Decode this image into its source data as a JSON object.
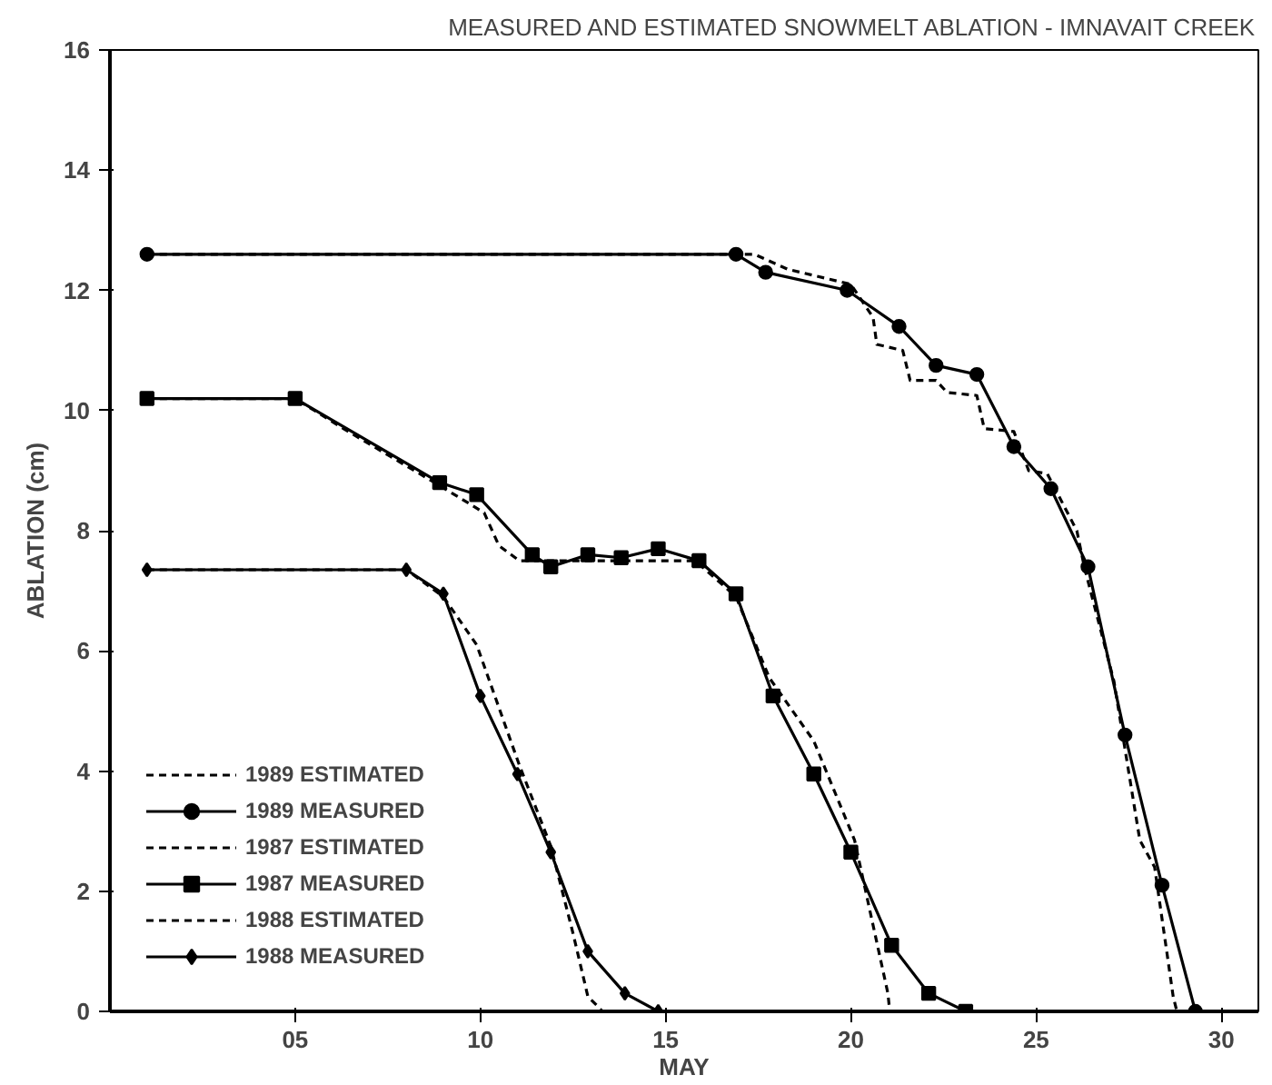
{
  "chart_data": {
    "type": "line",
    "title": "MEASURED AND ESTIMATED SNOWMELT ABLATION - IMNAVAIT CREEK",
    "xlabel": "MAY",
    "ylabel": "ABLATION (cm)",
    "xlim": [
      0,
      31
    ],
    "ylim": [
      0,
      16
    ],
    "xticks": [
      {
        "value": 5,
        "label": "05"
      },
      10,
      15,
      20,
      25,
      30
    ],
    "yticks": [
      0,
      2,
      4,
      6,
      8,
      10,
      12,
      14,
      16
    ],
    "grid": false,
    "legend": "bottom left",
    "series": [
      {
        "name": "1989 ESTIMATED",
        "color": "#000000",
        "line_style": "dashed",
        "marker": "none",
        "x": [
          1,
          17.4,
          18.3,
          20.0,
          20.6,
          20.7,
          21.4,
          21.6,
          22.3,
          22.6,
          23.4,
          23.6,
          24.4,
          24.8,
          25.3,
          26.1,
          26.3,
          27.1,
          27.8,
          28.2,
          28.7,
          28.8
        ],
        "values": [
          12.6,
          12.6,
          12.35,
          12.1,
          11.55,
          11.1,
          11.0,
          10.5,
          10.5,
          10.3,
          10.25,
          9.7,
          9.65,
          9.0,
          8.95,
          8.0,
          7.4,
          5.5,
          2.85,
          2.4,
          0.25,
          0
        ]
      },
      {
        "name": "1989 MEASURED",
        "color": "#000000",
        "line_style": "solid",
        "marker": "circle",
        "x": [
          1,
          16.9,
          17.7,
          19.9,
          21.3,
          22.3,
          23.4,
          24.4,
          25.4,
          26.4,
          27.4,
          28.4,
          29.3
        ],
        "values": [
          12.6,
          12.6,
          12.3,
          12.0,
          11.4,
          10.75,
          10.6,
          9.4,
          8.7,
          7.4,
          4.6,
          2.1,
          0
        ]
      },
      {
        "name": "1987 ESTIMATED",
        "color": "#000000",
        "line_style": "dashed",
        "marker": "none",
        "x": [
          1,
          5,
          6.3,
          8.9,
          10.1,
          10.5,
          11.05,
          14.8,
          15.8,
          16.9,
          17.8,
          19.0,
          20.1,
          21.0,
          21.05
        ],
        "values": [
          10.2,
          10.2,
          9.7,
          8.75,
          8.3,
          7.75,
          7.5,
          7.5,
          7.5,
          6.9,
          5.55,
          4.5,
          2.85,
          0.3,
          0
        ]
      },
      {
        "name": "1987 MEASURED",
        "color": "#000000",
        "line_style": "solid",
        "marker": "square",
        "x": [
          1,
          5,
          8.9,
          9.9,
          11.4,
          11.9,
          12.9,
          13.8,
          14.8,
          15.9,
          16.9,
          17.9,
          19.0,
          20.0,
          21.1,
          22.1,
          23.1
        ],
        "values": [
          10.2,
          10.2,
          8.8,
          8.6,
          7.6,
          7.4,
          7.6,
          7.55,
          7.7,
          7.5,
          6.95,
          5.25,
          3.95,
          2.65,
          1.1,
          0.3,
          0
        ]
      },
      {
        "name": "1988 ESTIMATED",
        "color": "#000000",
        "line_style": "dashed",
        "marker": "none",
        "x": [
          1,
          8,
          9,
          9.9,
          11.05,
          11.9,
          12.5,
          12.9,
          13.3
        ],
        "values": [
          7.35,
          7.35,
          6.9,
          6.1,
          4.1,
          2.75,
          1.3,
          0.25,
          0
        ]
      },
      {
        "name": "1988 MEASURED",
        "color": "#000000",
        "line_style": "solid",
        "marker": "diamond",
        "x": [
          1,
          8.0,
          9.0,
          10.0,
          11.0,
          11.9,
          12.9,
          13.9,
          14.8
        ],
        "values": [
          7.35,
          7.35,
          6.95,
          5.25,
          3.95,
          2.65,
          1.0,
          0.3,
          0
        ]
      }
    ]
  }
}
